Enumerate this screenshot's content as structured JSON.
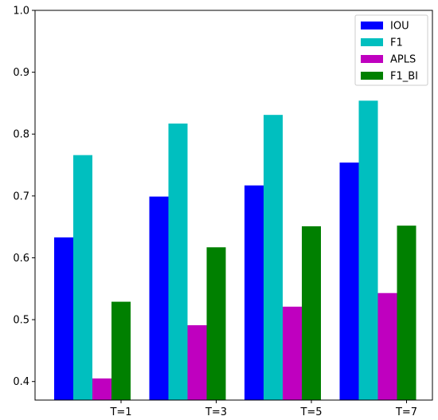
{
  "chart_data": {
    "type": "bar",
    "title": "",
    "xlabel": "",
    "ylabel": "",
    "categories": [
      "T=1",
      "T=3",
      "T=5",
      "T=7"
    ],
    "ylim": [
      0.37,
      1.0
    ],
    "yticks": [
      0.4,
      0.5,
      0.6,
      0.7,
      0.8,
      0.9,
      1.0
    ],
    "ytick_labels": [
      "0.4",
      "0.5",
      "0.6",
      "0.7",
      "0.8",
      "0.9",
      "1.0"
    ],
    "grid": false,
    "legend_position": "top-right",
    "series": [
      {
        "name": "IOU",
        "color": "#0000ff",
        "values": [
          0.633,
          0.699,
          0.717,
          0.754
        ]
      },
      {
        "name": "F1",
        "color": "#00bfbf",
        "values": [
          0.766,
          0.817,
          0.831,
          0.854
        ]
      },
      {
        "name": "APLS",
        "color": "#bf00bf",
        "values": [
          0.405,
          0.491,
          0.521,
          0.543
        ]
      },
      {
        "name": "F1_BI",
        "color": "#008000",
        "values": [
          0.529,
          0.617,
          0.651,
          0.652
        ]
      }
    ]
  }
}
